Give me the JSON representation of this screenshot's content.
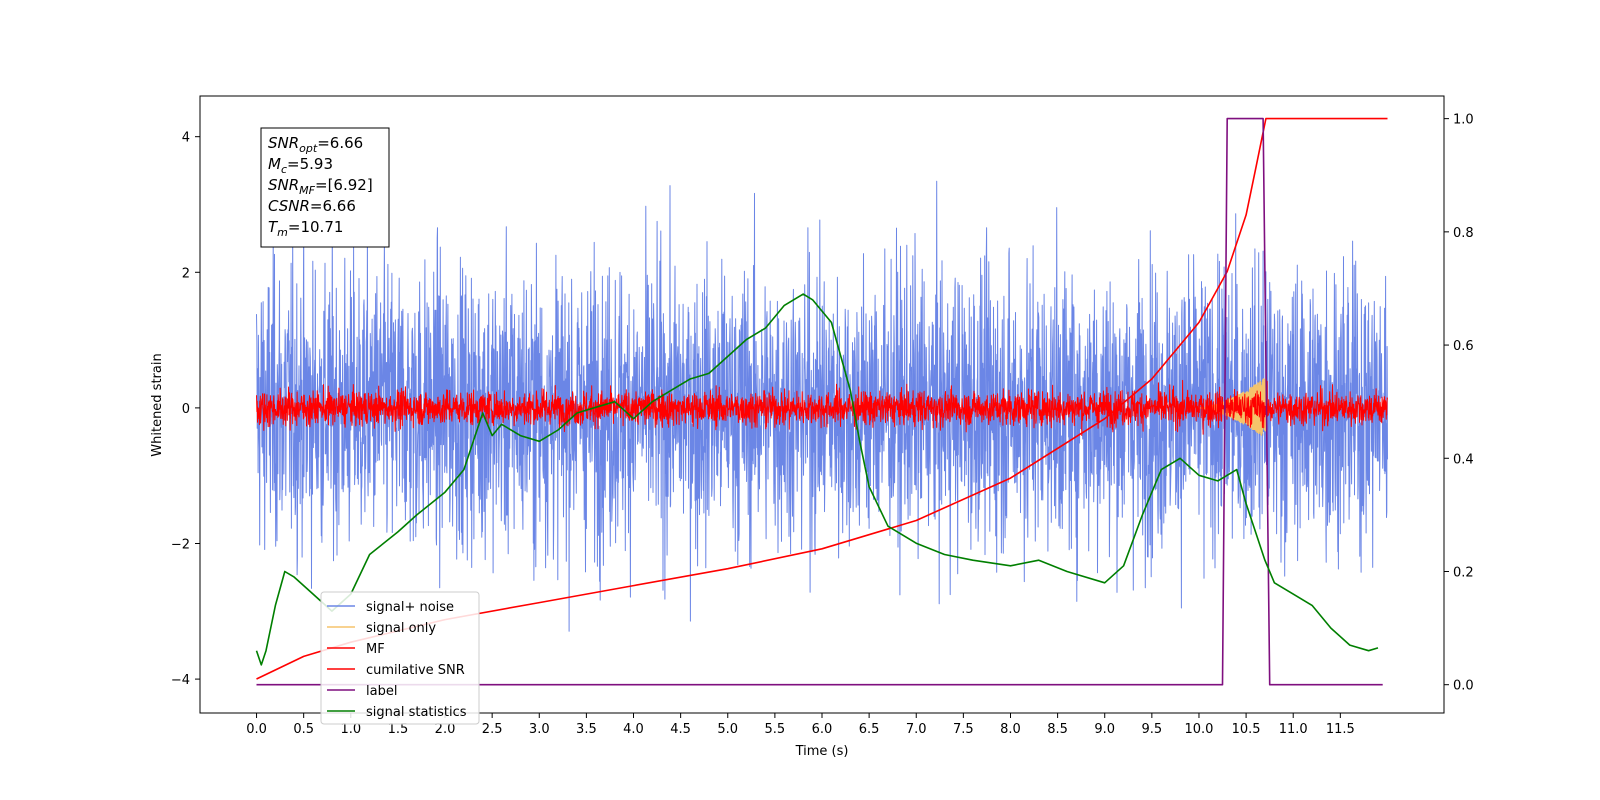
{
  "chart_data": {
    "type": "line",
    "xlabel": "Time (s)",
    "ylabel_left": "Whitened strain",
    "ylabel_right": "",
    "xlim": [
      -0.6,
      12.6
    ],
    "ylim_left": [
      -4.5,
      4.6
    ],
    "ylim_right": [
      -0.05,
      1.04
    ],
    "x_ticks": [
      "0.0",
      "0.5",
      "1.0",
      "1.5",
      "2.0",
      "2.5",
      "3.0",
      "3.5",
      "4.0",
      "4.5",
      "5.0",
      "5.5",
      "6.0",
      "6.5",
      "7.0",
      "7.5",
      "8.0",
      "8.5",
      "9.0",
      "9.5",
      "10.0",
      "10.5",
      "11.0",
      "11.5"
    ],
    "y_ticks_left": [
      "4",
      "2",
      "0",
      "−2",
      "−4"
    ],
    "y_ticks_right": [
      "1.0",
      "0.8",
      "0.6",
      "0.4",
      "0.2",
      "0.0"
    ],
    "grid": false,
    "legend_position": "lower-left",
    "info_box": {
      "lines": [
        {
          "sym": "SNR",
          "sub": "opt",
          "val": "=6.66"
        },
        {
          "sym": "M",
          "sub": "c",
          "val": "=5.93"
        },
        {
          "sym": "SNR",
          "sub": "MF",
          "val": "=[6.92]"
        },
        {
          "sym": "CSNR",
          "sub": "",
          "val": "=6.66"
        },
        {
          "sym": "T",
          "sub": "m",
          "val": "=10.71"
        }
      ]
    },
    "series": [
      {
        "name": "signal+ noise",
        "color": "#6b86e6",
        "axis": "left",
        "kind": "noise",
        "sigma": 1.05,
        "x_range": [
          0.0,
          12.0
        ]
      },
      {
        "name": "signal only",
        "color": "#f5c46b",
        "axis": "left",
        "kind": "chirp",
        "x_range": [
          10.0,
          10.71
        ],
        "amplitude": 0.45
      },
      {
        "name": "MF",
        "color": "#ff0000",
        "axis": "left",
        "kind": "noise",
        "sigma": 0.13,
        "x_range": [
          0.0,
          12.0
        ]
      },
      {
        "name": "cumilative SNR",
        "color": "#ff0000",
        "axis": "right",
        "x": [
          0.0,
          0.5,
          1.0,
          2.0,
          3.0,
          4.0,
          5.0,
          6.0,
          7.0,
          8.0,
          9.0,
          9.5,
          10.0,
          10.3,
          10.5,
          10.6,
          10.71,
          12.0
        ],
        "y": [
          0.01,
          0.05,
          0.075,
          0.115,
          0.145,
          0.175,
          0.205,
          0.24,
          0.29,
          0.365,
          0.47,
          0.54,
          0.64,
          0.73,
          0.83,
          0.91,
          1.0,
          1.0
        ]
      },
      {
        "name": "label",
        "color": "#7f0f7f",
        "axis": "right",
        "x": [
          0.0,
          10.25,
          10.3,
          10.68,
          10.75,
          11.95
        ],
        "y": [
          0.0,
          0.0,
          1.0,
          1.0,
          0.0,
          0.0
        ]
      },
      {
        "name": "signal statistics",
        "color": "#007f00",
        "axis": "right",
        "x": [
          0.0,
          0.05,
          0.1,
          0.2,
          0.3,
          0.4,
          0.6,
          0.8,
          1.0,
          1.2,
          1.5,
          1.7,
          2.0,
          2.2,
          2.3,
          2.4,
          2.5,
          2.6,
          2.8,
          3.0,
          3.2,
          3.4,
          3.6,
          3.8,
          4.0,
          4.2,
          4.4,
          4.6,
          4.8,
          5.0,
          5.2,
          5.4,
          5.5,
          5.6,
          5.8,
          5.9,
          6.0,
          6.1,
          6.2,
          6.3,
          6.4,
          6.5,
          6.7,
          7.0,
          7.3,
          7.6,
          8.0,
          8.3,
          8.6,
          9.0,
          9.2,
          9.4,
          9.6,
          9.8,
          10.0,
          10.2,
          10.4,
          10.5,
          10.6,
          10.7,
          10.8,
          11.0,
          11.2,
          11.4,
          11.6,
          11.8,
          11.9
        ],
        "y": [
          0.06,
          0.035,
          0.06,
          0.14,
          0.2,
          0.19,
          0.16,
          0.13,
          0.16,
          0.23,
          0.27,
          0.3,
          0.34,
          0.38,
          0.43,
          0.48,
          0.44,
          0.46,
          0.44,
          0.43,
          0.45,
          0.48,
          0.49,
          0.5,
          0.47,
          0.5,
          0.52,
          0.54,
          0.55,
          0.58,
          0.61,
          0.63,
          0.65,
          0.67,
          0.69,
          0.68,
          0.66,
          0.64,
          0.58,
          0.52,
          0.43,
          0.35,
          0.28,
          0.25,
          0.23,
          0.22,
          0.21,
          0.22,
          0.2,
          0.18,
          0.21,
          0.3,
          0.38,
          0.4,
          0.37,
          0.36,
          0.38,
          0.32,
          0.27,
          0.22,
          0.18,
          0.16,
          0.14,
          0.1,
          0.07,
          0.06,
          0.065
        ]
      }
    ]
  }
}
